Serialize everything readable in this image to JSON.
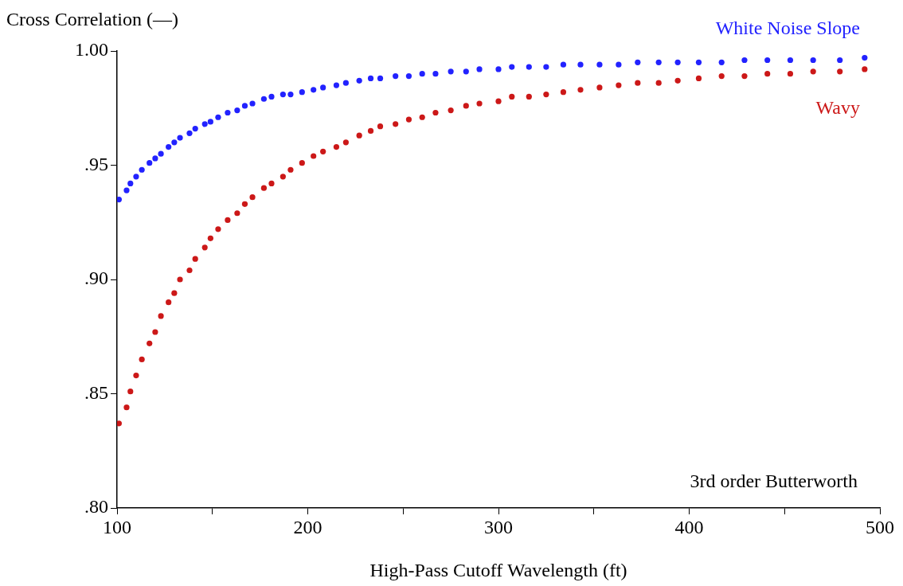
{
  "chart_data": {
    "type": "scatter",
    "xlabel": "High-Pass Cutoff Wavelength (ft)",
    "ylabel": "Cross Correlation (—)",
    "x": [
      101,
      105,
      107,
      110,
      113,
      117,
      120,
      123,
      127,
      130,
      133,
      138,
      141,
      146,
      149,
      153,
      158,
      163,
      167,
      171,
      177,
      181,
      187,
      191,
      197,
      203,
      208,
      215,
      220,
      227,
      233,
      238,
      246,
      253,
      260,
      267,
      275,
      283,
      290,
      300,
      307,
      316,
      325,
      334,
      343,
      353,
      363,
      373,
      384,
      394,
      405,
      417,
      429,
      441,
      453,
      465,
      479,
      492
    ],
    "series": [
      {
        "name": "White Noise Slope",
        "color": "#2222ff",
        "values": [
          0.935,
          0.939,
          0.942,
          0.945,
          0.948,
          0.951,
          0.953,
          0.955,
          0.958,
          0.96,
          0.962,
          0.964,
          0.966,
          0.968,
          0.969,
          0.971,
          0.973,
          0.974,
          0.976,
          0.977,
          0.979,
          0.98,
          0.981,
          0.981,
          0.982,
          0.983,
          0.984,
          0.985,
          0.986,
          0.987,
          0.988,
          0.988,
          0.989,
          0.989,
          0.99,
          0.99,
          0.991,
          0.991,
          0.992,
          0.992,
          0.993,
          0.993,
          0.993,
          0.994,
          0.994,
          0.994,
          0.994,
          0.995,
          0.995,
          0.995,
          0.995,
          0.995,
          0.996,
          0.996,
          0.996,
          0.996,
          0.996,
          0.997
        ]
      },
      {
        "name": "Wavy",
        "color": "#cc1818",
        "values": [
          0.837,
          0.844,
          0.851,
          0.858,
          0.865,
          0.872,
          0.877,
          0.884,
          0.89,
          0.894,
          0.9,
          0.904,
          0.909,
          0.914,
          0.918,
          0.922,
          0.926,
          0.929,
          0.933,
          0.936,
          0.94,
          0.942,
          0.945,
          0.948,
          0.951,
          0.954,
          0.956,
          0.958,
          0.96,
          0.963,
          0.965,
          0.967,
          0.968,
          0.97,
          0.971,
          0.973,
          0.974,
          0.976,
          0.977,
          0.978,
          0.98,
          0.98,
          0.981,
          0.982,
          0.983,
          0.984,
          0.985,
          0.986,
          0.986,
          0.987,
          0.988,
          0.989,
          0.989,
          0.99,
          0.99,
          0.991,
          0.991,
          0.992
        ]
      }
    ],
    "xlim": [
      100,
      500
    ],
    "xticks": [
      100,
      {
        "value": 150,
        "label": null
      },
      200,
      {
        "value": 250,
        "label": null
      },
      300,
      {
        "value": 350,
        "label": null
      },
      400,
      {
        "value": 450,
        "label": null
      },
      500
    ],
    "ylim": [
      0.8,
      1.0
    ],
    "yticks": [
      {
        "value": 0.8,
        "label": ".80"
      },
      {
        "value": 0.85,
        "label": ".85"
      },
      {
        "value": 0.9,
        "label": ".90"
      },
      {
        "value": 0.95,
        "label": ".95"
      },
      {
        "value": 1.0,
        "label": "1.00"
      }
    ],
    "annotations": [
      "3rd order Butterworth"
    ],
    "grid": false,
    "legend": false,
    "marker": "circle"
  }
}
